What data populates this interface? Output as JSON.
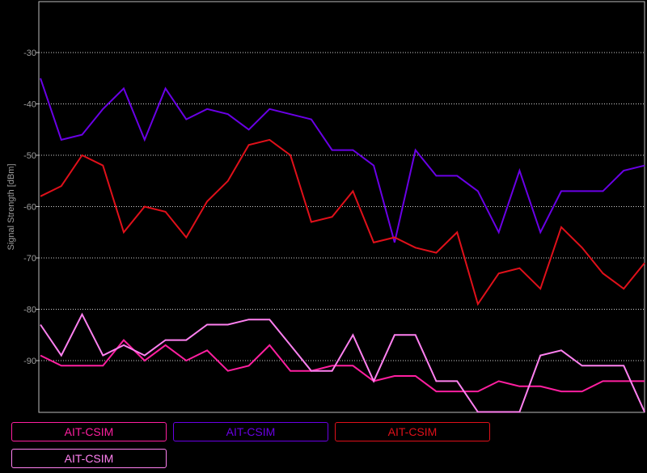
{
  "chart_data": {
    "type": "line",
    "ylabel": "Signal Strength [dBm]",
    "xlabel": "",
    "ylim": [
      -100,
      -20
    ],
    "yticks": [
      -30,
      -40,
      -50,
      -60,
      -70,
      -80,
      -90
    ],
    "grid": true,
    "legend_position": "bottom",
    "series": [
      {
        "name": "AIT-CSIM",
        "color": "#ff1fa0",
        "values": [
          -89,
          -91,
          -91,
          -91,
          -86,
          -90,
          -87,
          -90,
          -88,
          -92,
          -91,
          -87,
          -92,
          -92,
          -91,
          -91,
          -94,
          -93,
          -93,
          -96,
          -96,
          -96,
          -94,
          -95,
          -95,
          -96,
          -96,
          -94,
          -94,
          -94
        ]
      },
      {
        "name": "AIT-CSIM",
        "color": "#6a00e6",
        "values": [
          -35,
          -47,
          -46,
          -41,
          -37,
          -47,
          -37,
          -43,
          -41,
          -42,
          -45,
          -41,
          -42,
          -43,
          -49,
          -49,
          -52,
          -67,
          -49,
          -54,
          -54,
          -57,
          -65,
          -53,
          -65,
          -57,
          -57,
          -57,
          -53,
          -52
        ]
      },
      {
        "name": "AIT-CSIM",
        "color": "#e0101a",
        "values": [
          -58,
          -56,
          -50,
          -52,
          -65,
          -60,
          -61,
          -66,
          -59,
          -55,
          -48,
          -47,
          -50,
          -63,
          -62,
          -57,
          -67,
          -66,
          -68,
          -69,
          -65,
          -79,
          -73,
          -72,
          -76,
          -64,
          -68,
          -73,
          -76,
          -71
        ]
      },
      {
        "name": "AIT-CSIM",
        "color": "#ff80f0",
        "values": [
          -83,
          -89,
          -81,
          -89,
          -87,
          -89,
          -86,
          -86,
          -83,
          -83,
          -82,
          -82,
          -87,
          -92,
          -92,
          -85,
          -94,
          -85,
          -85,
          -94,
          -94,
          -100,
          -100,
          -100,
          -89,
          -88,
          -91,
          -91,
          -91,
          -100
        ]
      }
    ]
  },
  "legend": {
    "items": [
      {
        "label": "AIT-CSIM",
        "color": "#ff1fa0"
      },
      {
        "label": "AIT-CSIM",
        "color": "#6a00e6"
      },
      {
        "label": "AIT-CSIM",
        "color": "#e0101a"
      },
      {
        "label": "AIT-CSIM",
        "color": "#ff80f0"
      }
    ]
  }
}
